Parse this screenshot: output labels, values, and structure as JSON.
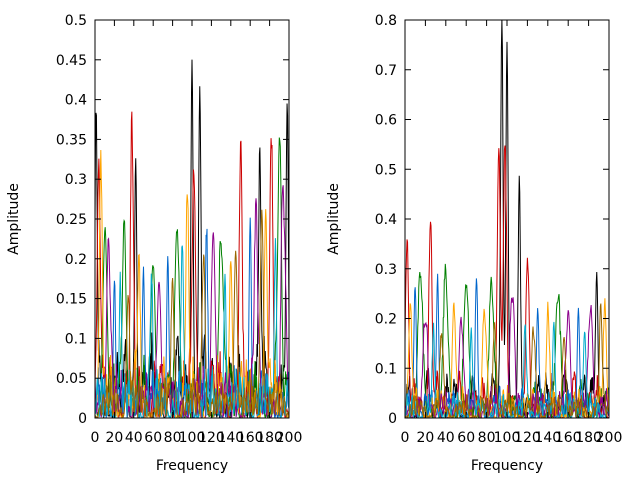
{
  "chart_data": [
    {
      "type": "line",
      "xlabel": "Frequency",
      "ylabel": "Amplitude",
      "xlim": [
        0,
        200
      ],
      "ylim": [
        0,
        0.5
      ],
      "xticks": [
        "0",
        "20",
        "40",
        "60",
        "80",
        "100",
        "120",
        "140",
        "160",
        "180",
        "200"
      ],
      "yticks": [
        "0",
        "0.05",
        "0.1",
        "0.15",
        "0.2",
        "0.25",
        "0.3",
        "0.35",
        "0.4",
        "0.45",
        "0.5"
      ],
      "grid": false,
      "legend": "none",
      "colors": [
        "#000000",
        "#cc0000",
        "#008000",
        "#0066cc",
        "#ffa500",
        "#8b008b",
        "#00aacc",
        "#996600",
        "#228b22",
        "#e6c300"
      ],
      "series": [
        {
          "peaks": [
            [
              1,
              0.36
            ],
            [
              42,
              0.32
            ],
            [
              100,
              0.45
            ],
            [
              108,
              0.41
            ],
            [
              170,
              0.33
            ],
            [
              198,
              0.38
            ]
          ],
          "baseline": 0.08
        },
        {
          "peaks": [
            [
              4,
              0.3
            ],
            [
              38,
              0.31
            ],
            [
              102,
              0.3
            ],
            [
              150,
              0.27
            ],
            [
              182,
              0.29
            ]
          ],
          "baseline": 0.07
        },
        {
          "peaks": [
            [
              10,
              0.22
            ],
            [
              30,
              0.22
            ],
            [
              60,
              0.19
            ],
            [
              85,
              0.22
            ],
            [
              130,
              0.21
            ],
            [
              190,
              0.3
            ]
          ],
          "baseline": 0.06
        },
        {
          "peaks": [
            [
              20,
              0.16
            ],
            [
              50,
              0.18
            ],
            [
              75,
              0.2
            ],
            [
              115,
              0.19
            ],
            [
              160,
              0.25
            ]
          ],
          "baseline": 0.05
        },
        {
          "peaks": [
            [
              6,
              0.28
            ],
            [
              45,
              0.15
            ],
            [
              95,
              0.24
            ],
            [
              140,
              0.19
            ],
            [
              176,
              0.23
            ]
          ],
          "baseline": 0.06
        },
        {
          "peaks": [
            [
              14,
              0.2
            ],
            [
              66,
              0.17
            ],
            [
              122,
              0.23
            ],
            [
              166,
              0.22
            ],
            [
              194,
              0.27
            ]
          ],
          "baseline": 0.05
        },
        {
          "peaks": [
            [
              26,
              0.15
            ],
            [
              58,
              0.16
            ],
            [
              90,
              0.21
            ],
            [
              134,
              0.18
            ],
            [
              186,
              0.2
            ]
          ],
          "baseline": 0.05
        },
        {
          "peaks": [
            [
              34,
              0.14
            ],
            [
              80,
              0.15
            ],
            [
              112,
              0.2
            ],
            [
              145,
              0.21
            ],
            [
              172,
              0.26
            ]
          ],
          "baseline": 0.04
        }
      ]
    },
    {
      "type": "line",
      "xlabel": "Frequency",
      "ylabel": "Amplitude",
      "xlim": [
        0,
        200
      ],
      "ylim": [
        0,
        0.8
      ],
      "xticks": [
        "0",
        "20",
        "40",
        "60",
        "80",
        "100",
        "120",
        "140",
        "160",
        "180",
        "200"
      ],
      "yticks": [
        "0",
        "0.1",
        "0.2",
        "0.3",
        "0.4",
        "0.5",
        "0.6",
        "0.7",
        "0.8"
      ],
      "grid": false,
      "legend": "none",
      "colors": [
        "#000000",
        "#cc0000",
        "#008000",
        "#0066cc",
        "#ffa500",
        "#8b008b",
        "#00aacc",
        "#996600",
        "#228b22",
        "#e6c300"
      ],
      "series": [
        {
          "peaks": [
            [
              95,
              0.75
            ],
            [
              100,
              0.75
            ],
            [
              112,
              0.38
            ],
            [
              188,
              0.29
            ]
          ],
          "baseline": 0.08
        },
        {
          "peaks": [
            [
              2,
              0.31
            ],
            [
              25,
              0.36
            ],
            [
              92,
              0.49
            ],
            [
              98,
              0.49
            ],
            [
              120,
              0.27
            ]
          ],
          "baseline": 0.07
        },
        {
          "peaks": [
            [
              15,
              0.28
            ],
            [
              40,
              0.27
            ],
            [
              60,
              0.26
            ],
            [
              85,
              0.25
            ],
            [
              150,
              0.23
            ]
          ],
          "baseline": 0.06
        },
        {
          "peaks": [
            [
              10,
              0.25
            ],
            [
              32,
              0.26
            ],
            [
              70,
              0.24
            ],
            [
              130,
              0.21
            ],
            [
              170,
              0.22
            ]
          ],
          "baseline": 0.05
        },
        {
          "peaks": [
            [
              5,
              0.2
            ],
            [
              48,
              0.22
            ],
            [
              78,
              0.2
            ],
            [
              140,
              0.19
            ],
            [
              196,
              0.2
            ]
          ],
          "baseline": 0.05
        },
        {
          "peaks": [
            [
              20,
              0.18
            ],
            [
              55,
              0.19
            ],
            [
              105,
              0.23
            ],
            [
              160,
              0.2
            ],
            [
              182,
              0.21
            ]
          ],
          "baseline": 0.05
        },
        {
          "peaks": [
            [
              28,
              0.16
            ],
            [
              65,
              0.17
            ],
            [
              118,
              0.17
            ],
            [
              146,
              0.18
            ],
            [
              176,
              0.17
            ]
          ],
          "baseline": 0.04
        },
        {
          "peaks": [
            [
              36,
              0.15
            ],
            [
              88,
              0.18
            ],
            [
              126,
              0.16
            ],
            [
              156,
              0.16
            ],
            [
              192,
              0.18
            ]
          ],
          "baseline": 0.04
        }
      ]
    }
  ]
}
